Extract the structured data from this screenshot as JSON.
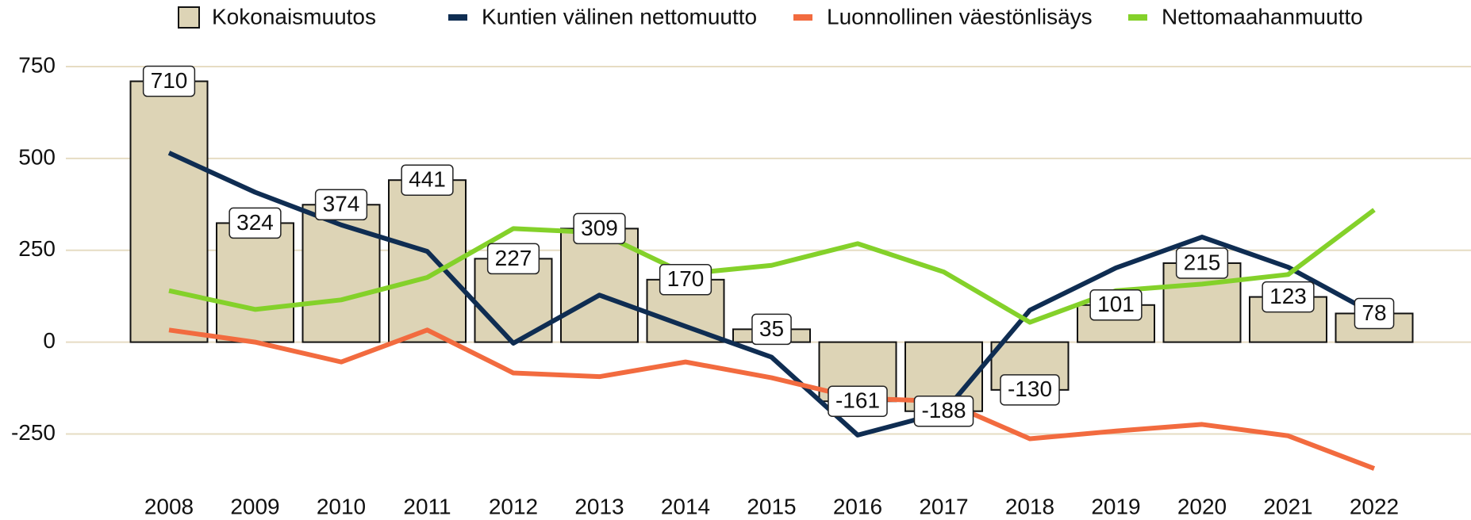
{
  "chart_data": {
    "type": "bar",
    "categories": [
      "2008",
      "2009",
      "2010",
      "2011",
      "2012",
      "2013",
      "2014",
      "2015",
      "2016",
      "2017",
      "2018",
      "2019",
      "2020",
      "2021",
      "2022"
    ],
    "series": [
      {
        "name": "Kokonaismuutos",
        "type": "bar",
        "color": "#ddd4b6",
        "values": [
          710,
          324,
          374,
          441,
          227,
          309,
          170,
          35,
          -161,
          -188,
          -130,
          101,
          215,
          123,
          78
        ]
      },
      {
        "name": "Kuntien välinen nettomuutto",
        "type": "line",
        "color": "#0f2d52",
        "values": [
          515,
          408,
          319,
          247,
          -3,
          128,
          43,
          -41,
          -253,
          -191,
          87,
          202,
          286,
          204,
          77
        ]
      },
      {
        "name": "Luonnollinen väestönlisäys",
        "type": "line",
        "color": "#f26b3f",
        "values": [
          33,
          0,
          -54,
          33,
          -84,
          -94,
          -54,
          -97,
          -153,
          -161,
          -263,
          -242,
          -224,
          -255,
          -344
        ]
      },
      {
        "name": "Nettomaahanmuutto",
        "type": "line",
        "color": "#84d12a",
        "values": [
          140,
          89,
          115,
          176,
          309,
          298,
          186,
          209,
          268,
          191,
          54,
          140,
          158,
          184,
          360
        ]
      }
    ],
    "ylim": [
      -375,
      750
    ],
    "yticks": [
      -250,
      0,
      250,
      500,
      750
    ],
    "grid": true,
    "legend": "top"
  }
}
